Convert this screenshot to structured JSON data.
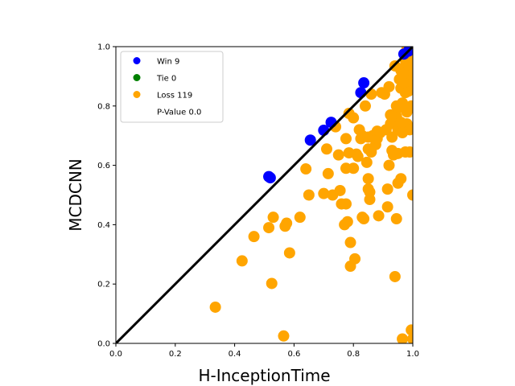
{
  "chart_data": {
    "type": "scatter",
    "title": "",
    "xlabel": "H-InceptionTime",
    "ylabel": "MCDCNN",
    "xlim": [
      0.0,
      1.0
    ],
    "ylim": [
      0.0,
      1.0
    ],
    "xticks": [
      "0.0",
      "0.2",
      "0.4",
      "0.6",
      "0.8",
      "1.0"
    ],
    "yticks": [
      "0.0",
      "0.2",
      "0.4",
      "0.6",
      "0.8",
      "1.0"
    ],
    "grid": false,
    "legend_position": "top-left",
    "diagonal": {
      "from": [
        0,
        0
      ],
      "to": [
        1,
        1
      ],
      "color": "#000000"
    },
    "legend": [
      {
        "label": "Win 9",
        "color": "#0000ff"
      },
      {
        "label": "Tie 0",
        "color": "#008000"
      },
      {
        "label": "Loss 119",
        "color": "#ffa500"
      },
      {
        "label": "P-Value 0.0",
        "color": ""
      }
    ],
    "series": [
      {
        "name": "Win 9",
        "color": "#0000ff",
        "points": [
          [
            0.515,
            0.562
          ],
          [
            0.52,
            0.558
          ],
          [
            0.655,
            0.685
          ],
          [
            0.7,
            0.718
          ],
          [
            0.725,
            0.745
          ],
          [
            0.825,
            0.845
          ],
          [
            0.835,
            0.878
          ],
          [
            0.97,
            0.975
          ],
          [
            0.985,
            0.985
          ]
        ]
      },
      {
        "name": "Tie 0",
        "color": "#008000",
        "points": []
      },
      {
        "name": "Loss 119",
        "color": "#ffa500",
        "points": [
          [
            0.335,
            0.122
          ],
          [
            0.425,
            0.278
          ],
          [
            0.465,
            0.36
          ],
          [
            0.515,
            0.39
          ],
          [
            0.525,
            0.202
          ],
          [
            0.53,
            0.425
          ],
          [
            0.565,
            0.025
          ],
          [
            0.57,
            0.395
          ],
          [
            0.575,
            0.405
          ],
          [
            0.585,
            0.305
          ],
          [
            0.62,
            0.425
          ],
          [
            0.64,
            0.588
          ],
          [
            0.65,
            0.5
          ],
          [
            0.7,
            0.505
          ],
          [
            0.71,
            0.655
          ],
          [
            0.715,
            0.572
          ],
          [
            0.73,
            0.5
          ],
          [
            0.74,
            0.73
          ],
          [
            0.75,
            0.635
          ],
          [
            0.755,
            0.515
          ],
          [
            0.76,
            0.47
          ],
          [
            0.77,
            0.4
          ],
          [
            0.775,
            0.47
          ],
          [
            0.775,
            0.69
          ],
          [
            0.775,
            0.59
          ],
          [
            0.78,
            0.41
          ],
          [
            0.785,
            0.775
          ],
          [
            0.785,
            0.642
          ],
          [
            0.79,
            0.34
          ],
          [
            0.79,
            0.26
          ],
          [
            0.8,
            0.76
          ],
          [
            0.8,
            0.59
          ],
          [
            0.805,
            0.285
          ],
          [
            0.81,
            0.638
          ],
          [
            0.815,
            0.63
          ],
          [
            0.82,
            0.72
          ],
          [
            0.825,
            0.69
          ],
          [
            0.83,
            0.7
          ],
          [
            0.83,
            0.425
          ],
          [
            0.835,
            0.42
          ],
          [
            0.84,
            0.8
          ],
          [
            0.845,
            0.61
          ],
          [
            0.85,
            0.695
          ],
          [
            0.85,
            0.555
          ],
          [
            0.85,
            0.52
          ],
          [
            0.85,
            0.655
          ],
          [
            0.855,
            0.51
          ],
          [
            0.855,
            0.485
          ],
          [
            0.86,
            0.84
          ],
          [
            0.86,
            0.645
          ],
          [
            0.865,
            0.7
          ],
          [
            0.87,
            0.695
          ],
          [
            0.875,
            0.67
          ],
          [
            0.88,
            0.715
          ],
          [
            0.88,
            0.69
          ],
          [
            0.885,
            0.43
          ],
          [
            0.89,
            0.71
          ],
          [
            0.895,
            0.845
          ],
          [
            0.905,
            0.84
          ],
          [
            0.91,
            0.72
          ],
          [
            0.915,
            0.52
          ],
          [
            0.915,
            0.46
          ],
          [
            0.92,
            0.865
          ],
          [
            0.92,
            0.6
          ],
          [
            0.925,
            0.77
          ],
          [
            0.925,
            0.74
          ],
          [
            0.93,
            0.695
          ],
          [
            0.93,
            0.65
          ],
          [
            0.935,
            0.635
          ],
          [
            0.94,
            0.935
          ],
          [
            0.94,
            0.225
          ],
          [
            0.945,
            0.8
          ],
          [
            0.945,
            0.765
          ],
          [
            0.945,
            0.42
          ],
          [
            0.95,
            0.72
          ],
          [
            0.95,
            0.64
          ],
          [
            0.95,
            0.54
          ],
          [
            0.955,
            0.89
          ],
          [
            0.955,
            0.795
          ],
          [
            0.96,
            0.86
          ],
          [
            0.96,
            0.745
          ],
          [
            0.96,
            0.555
          ],
          [
            0.965,
            0.81
          ],
          [
            0.965,
            0.015
          ],
          [
            0.97,
            0.93
          ],
          [
            0.97,
            0.86
          ],
          [
            0.97,
            0.72
          ],
          [
            0.975,
            0.955
          ],
          [
            0.975,
            0.905
          ],
          [
            0.975,
            0.845
          ],
          [
            0.975,
            0.645
          ],
          [
            0.98,
            0.78
          ],
          [
            0.98,
            0.74
          ],
          [
            0.985,
            0.96
          ],
          [
            0.985,
            0.88
          ],
          [
            0.985,
            0.85
          ],
          [
            0.99,
            0.93
          ],
          [
            0.99,
            0.91
          ],
          [
            0.99,
            0.72
          ],
          [
            0.99,
            0.645
          ],
          [
            0.995,
            0.975
          ],
          [
            0.995,
            0.8
          ],
          [
            0.995,
            0.045
          ],
          [
            1.0,
            0.94
          ],
          [
            1.0,
            0.5
          ],
          [
            1.0,
            0.015
          ],
          [
            0.96,
            0.92
          ],
          [
            0.965,
            0.71
          ],
          [
            0.99,
            0.87
          ],
          [
            0.98,
            0.885
          ],
          [
            0.97,
            0.88
          ],
          [
            0.985,
            0.925
          ],
          [
            0.995,
            0.955
          ],
          [
            0.975,
            0.935
          ],
          [
            0.99,
            0.985
          ],
          [
            0.985,
            0.94
          ],
          [
            1.0,
            0.985
          ],
          [
            0.965,
            0.905
          ],
          [
            0.98,
            0.99
          ]
        ]
      }
    ]
  }
}
